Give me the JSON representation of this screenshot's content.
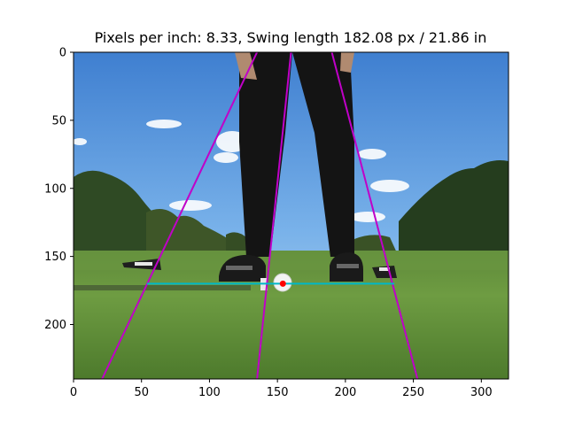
{
  "chart_data": {
    "type": "image",
    "title": "Pixels per inch: 8.33, Swing length 182.08 px / 21.86 in",
    "xlabel": "",
    "ylabel": "",
    "xlim": [
      0,
      320
    ],
    "ylim": [
      240,
      0
    ],
    "x_ticks": [
      0,
      50,
      100,
      150,
      200,
      250,
      300
    ],
    "y_ticks": [
      0,
      50,
      100,
      150,
      200
    ],
    "grid": false,
    "overlay_lines": [
      {
        "name": "",
        "color": "#c000c8",
        "points": [
          [
            21,
            240
          ],
          [
            135,
            0
          ]
        ]
      },
      {
        "name": "",
        "color": "#c000c8",
        "points": [
          [
            135,
            240
          ],
          [
            160,
            0
          ]
        ]
      },
      {
        "name": "",
        "color": "#c000c8",
        "points": [
          [
            253,
            240
          ],
          [
            190,
            0
          ]
        ]
      },
      {
        "name": "",
        "color": "#00b8c8",
        "points": [
          [
            54,
            170
          ],
          [
            236,
            170
          ]
        ]
      }
    ],
    "overlay_points": [
      {
        "color": "#ff0000",
        "x": 154,
        "y": 170
      }
    ]
  },
  "colors": {
    "axes_edge": "#000000",
    "magenta": "#c000c8",
    "cyan": "#00b8c8",
    "ball_marker": "#ff0000"
  }
}
